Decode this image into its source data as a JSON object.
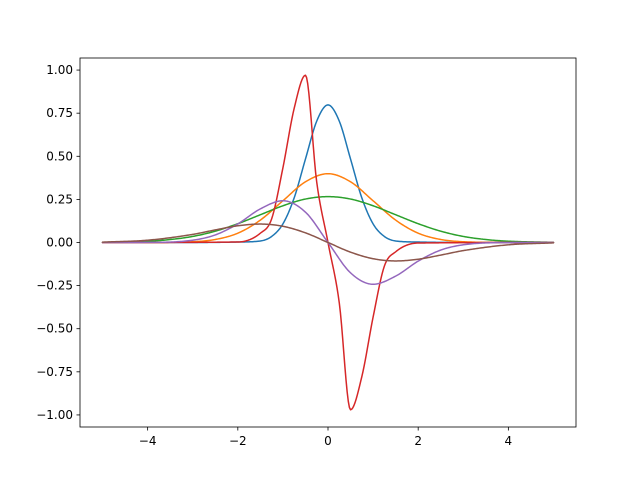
{
  "chart_data": {
    "type": "line",
    "title": "",
    "xlabel": "",
    "ylabel": "",
    "xlim": [
      -5.5,
      5.5
    ],
    "ylim": [
      -1.07,
      1.07
    ],
    "grid": false,
    "legend": "none",
    "x_ticks": [
      -4,
      -2,
      0,
      2,
      4
    ],
    "x_tick_labels": [
      "−4",
      "−2",
      "0",
      "2",
      "4"
    ],
    "y_ticks": [
      1.0,
      0.75,
      0.5,
      0.25,
      0.0,
      -0.25,
      -0.5,
      -0.75,
      -1.0
    ],
    "y_tick_labels": [
      "1.00",
      "0.75",
      "0.50",
      "0.25",
      "0.00",
      "−0.25",
      "−0.50",
      "−0.75",
      "−1.00"
    ],
    "series": [
      {
        "color": "#1f77b4",
        "x": [
          -5,
          -3,
          -2,
          -1.5,
          -1.25,
          -1,
          -0.75,
          -0.5,
          -0.25,
          0,
          0.25,
          0.5,
          0.75,
          1,
          1.25,
          1.5,
          2,
          3,
          5
        ],
        "y": [
          0,
          0,
          0.0027,
          0.0089,
          0.035,
          0.108,
          0.259,
          0.484,
          0.704,
          0.798,
          0.704,
          0.484,
          0.259,
          0.108,
          0.035,
          0.0089,
          0.0027,
          0,
          0
        ]
      },
      {
        "color": "#ff7f0e",
        "x": [
          -5,
          -4,
          -3,
          -2.5,
          -2,
          -1.5,
          -1,
          -0.5,
          0,
          0.5,
          1,
          1.5,
          2,
          2.5,
          3,
          4,
          5
        ],
        "y": [
          0,
          0.0001,
          0.0044,
          0.0175,
          0.054,
          0.13,
          0.242,
          0.352,
          0.399,
          0.352,
          0.242,
          0.13,
          0.054,
          0.0175,
          0.0044,
          0.0001,
          0
        ]
      },
      {
        "color": "#2ca02c",
        "x": [
          -5,
          -4,
          -3.5,
          -3,
          -2.5,
          -2,
          -1.5,
          -1,
          -0.5,
          0,
          0.5,
          1,
          1.5,
          2,
          2.5,
          3,
          3.5,
          4,
          5
        ],
        "y": [
          0.001,
          0.0076,
          0.0171,
          0.0352,
          0.0656,
          0.109,
          0.161,
          0.213,
          0.252,
          0.266,
          0.252,
          0.213,
          0.161,
          0.109,
          0.0656,
          0.0352,
          0.0171,
          0.0076,
          0.001
        ]
      },
      {
        "color": "#d62728",
        "x": [
          -5,
          -2,
          -1.5,
          -1.25,
          -1,
          -0.75,
          -0.5,
          -0.25,
          0,
          0.25,
          0.5,
          0.75,
          1,
          1.25,
          1.5,
          2,
          5
        ],
        "y": [
          0,
          0.003,
          0.054,
          0.137,
          0.433,
          0.778,
          0.97,
          0.35,
          0,
          -0.35,
          -0.97,
          -0.778,
          -0.433,
          -0.137,
          -0.054,
          -0.003,
          0
        ]
      },
      {
        "color": "#9467bd",
        "x": [
          -5,
          -4,
          -3,
          -2.5,
          -2,
          -1.5,
          -1,
          -0.5,
          0,
          0.5,
          1,
          1.5,
          2,
          2.5,
          3,
          4,
          5
        ],
        "y": [
          0,
          0.0005,
          0.0133,
          0.044,
          0.108,
          0.195,
          0.242,
          0.176,
          0,
          -0.176,
          -0.242,
          -0.195,
          -0.108,
          -0.044,
          -0.0133,
          -0.0005,
          0
        ]
      },
      {
        "color": "#8c564b",
        "x": [
          -5,
          -4,
          -3,
          -2.5,
          -2,
          -1.5,
          -1,
          -0.5,
          0,
          0.5,
          1,
          1.5,
          2,
          2.5,
          3,
          4,
          5
        ],
        "y": [
          0.0022,
          0.0134,
          0.047,
          0.073,
          0.097,
          0.107,
          0.094,
          0.056,
          0,
          -0.056,
          -0.094,
          -0.107,
          -0.097,
          -0.073,
          -0.047,
          -0.0134,
          -0.0022
        ]
      }
    ]
  }
}
